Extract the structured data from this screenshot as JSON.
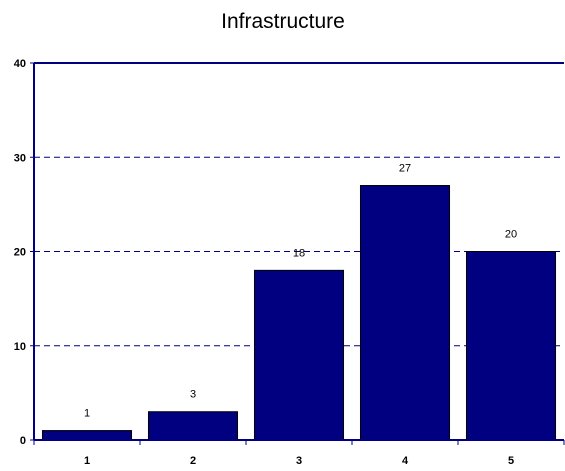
{
  "chart_data": {
    "type": "bar",
    "title": "Infrastructure",
    "xlabel": "",
    "ylabel": "",
    "categories": [
      "1",
      "2",
      "3",
      "4",
      "5"
    ],
    "values": [
      1,
      3,
      18,
      27,
      20
    ],
    "data_labels": [
      "1",
      "3",
      "18",
      "27",
      "20"
    ],
    "ylim": [
      0,
      40
    ],
    "yticks": [
      0,
      10,
      20,
      30,
      40
    ],
    "ytick_labels": [
      "0",
      "10",
      "20",
      "30",
      "40"
    ],
    "grid": "horizontal dashed",
    "legend": "none",
    "colors": {
      "bar": "#000080",
      "bar_edge": "#000000",
      "axis": "#000080",
      "grid": "#000080"
    }
  }
}
